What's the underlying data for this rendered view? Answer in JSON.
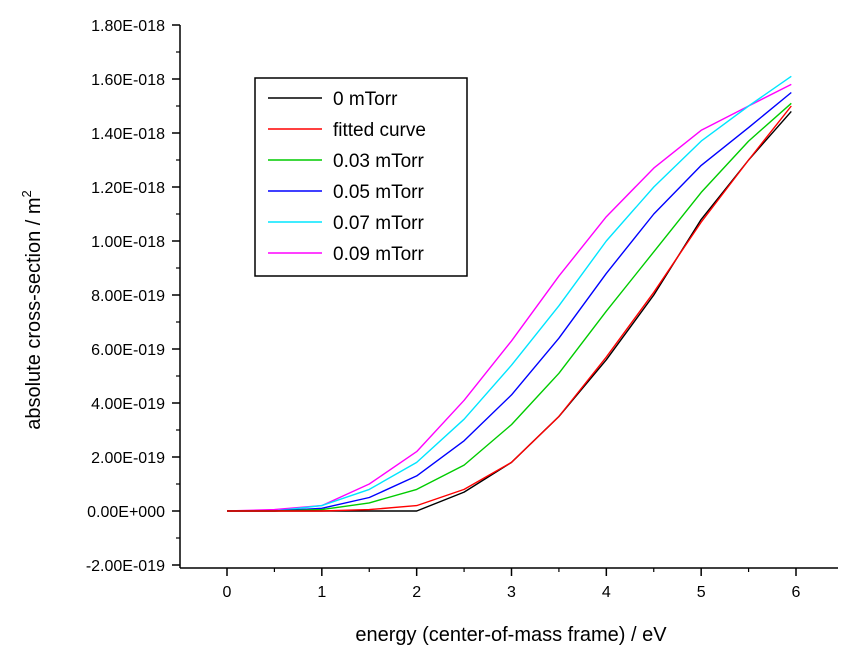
{
  "chart_data": {
    "type": "line",
    "title": "",
    "xlabel": "energy (center-of-mass frame) / eV",
    "ylabel": "absolute cross-section / m",
    "ylabel_superscript": "2",
    "xlim": [
      -0.5,
      6.5
    ],
    "ylim": [
      -2e-19,
      1.8e-18
    ],
    "x_ticks": [
      0,
      1,
      2,
      3,
      4,
      5,
      6
    ],
    "x_tick_labels": [
      "0",
      "1",
      "2",
      "3",
      "4",
      "5",
      "6"
    ],
    "y_ticks": [
      -2e-19,
      0,
      2e-19,
      4e-19,
      6e-19,
      8e-19,
      1e-18,
      1.2e-18,
      1.4e-18,
      1.6e-18,
      1.8e-18
    ],
    "y_tick_labels": [
      "-2.00E-019",
      "0.00E+000",
      "2.00E-019",
      "4.00E-019",
      "6.00E-019",
      "8.00E-019",
      "1.00E-018",
      "1.20E-018",
      "1.40E-018",
      "1.60E-018",
      "1.80E-018"
    ],
    "grid": false,
    "legend_position": "top-left",
    "x": [
      0,
      0.5,
      1.0,
      1.5,
      2.0,
      2.5,
      3.0,
      3.5,
      4.0,
      4.5,
      5.0,
      5.5,
      5.95
    ],
    "series": [
      {
        "name": "0 mTorr",
        "color": "#000000",
        "values": [
          0,
          0,
          0,
          0,
          0,
          7e-20,
          1.8e-19,
          3.5e-19,
          5.6e-19,
          8e-19,
          1.08e-18,
          1.3e-18,
          1.48e-18
        ]
      },
      {
        "name": "fitted curve",
        "color": "#ff0000",
        "values": [
          0,
          0,
          0,
          5e-21,
          2e-20,
          8e-20,
          1.8e-19,
          3.5e-19,
          5.7e-19,
          8.1e-19,
          1.07e-18,
          1.3e-18,
          1.5e-18
        ]
      },
      {
        "name": "0.03 mTorr",
        "color": "#00cc00",
        "values": [
          0,
          0,
          5e-21,
          3e-20,
          8e-20,
          1.7e-19,
          3.2e-19,
          5.1e-19,
          7.4e-19,
          9.6e-19,
          1.18e-18,
          1.37e-18,
          1.51e-18
        ]
      },
      {
        "name": "0.05 mTorr",
        "color": "#0000ff",
        "values": [
          0,
          0,
          1e-20,
          5e-20,
          1.3e-19,
          2.6e-19,
          4.3e-19,
          6.4e-19,
          8.8e-19,
          1.1e-18,
          1.28e-18,
          1.42e-18,
          1.55e-18
        ]
      },
      {
        "name": "0.07 mTorr",
        "color": "#00e5ff",
        "values": [
          0,
          0,
          2e-20,
          8e-20,
          1.8e-19,
          3.4e-19,
          5.4e-19,
          7.6e-19,
          1e-18,
          1.2e-18,
          1.37e-18,
          1.5e-18,
          1.61e-18
        ]
      },
      {
        "name": "0.09 mTorr",
        "color": "#ff00ff",
        "values": [
          0,
          5e-21,
          2e-20,
          1e-19,
          2.2e-19,
          4.1e-19,
          6.3e-19,
          8.7e-19,
          1.09e-18,
          1.27e-18,
          1.41e-18,
          1.5e-18,
          1.58e-18
        ]
      }
    ]
  }
}
